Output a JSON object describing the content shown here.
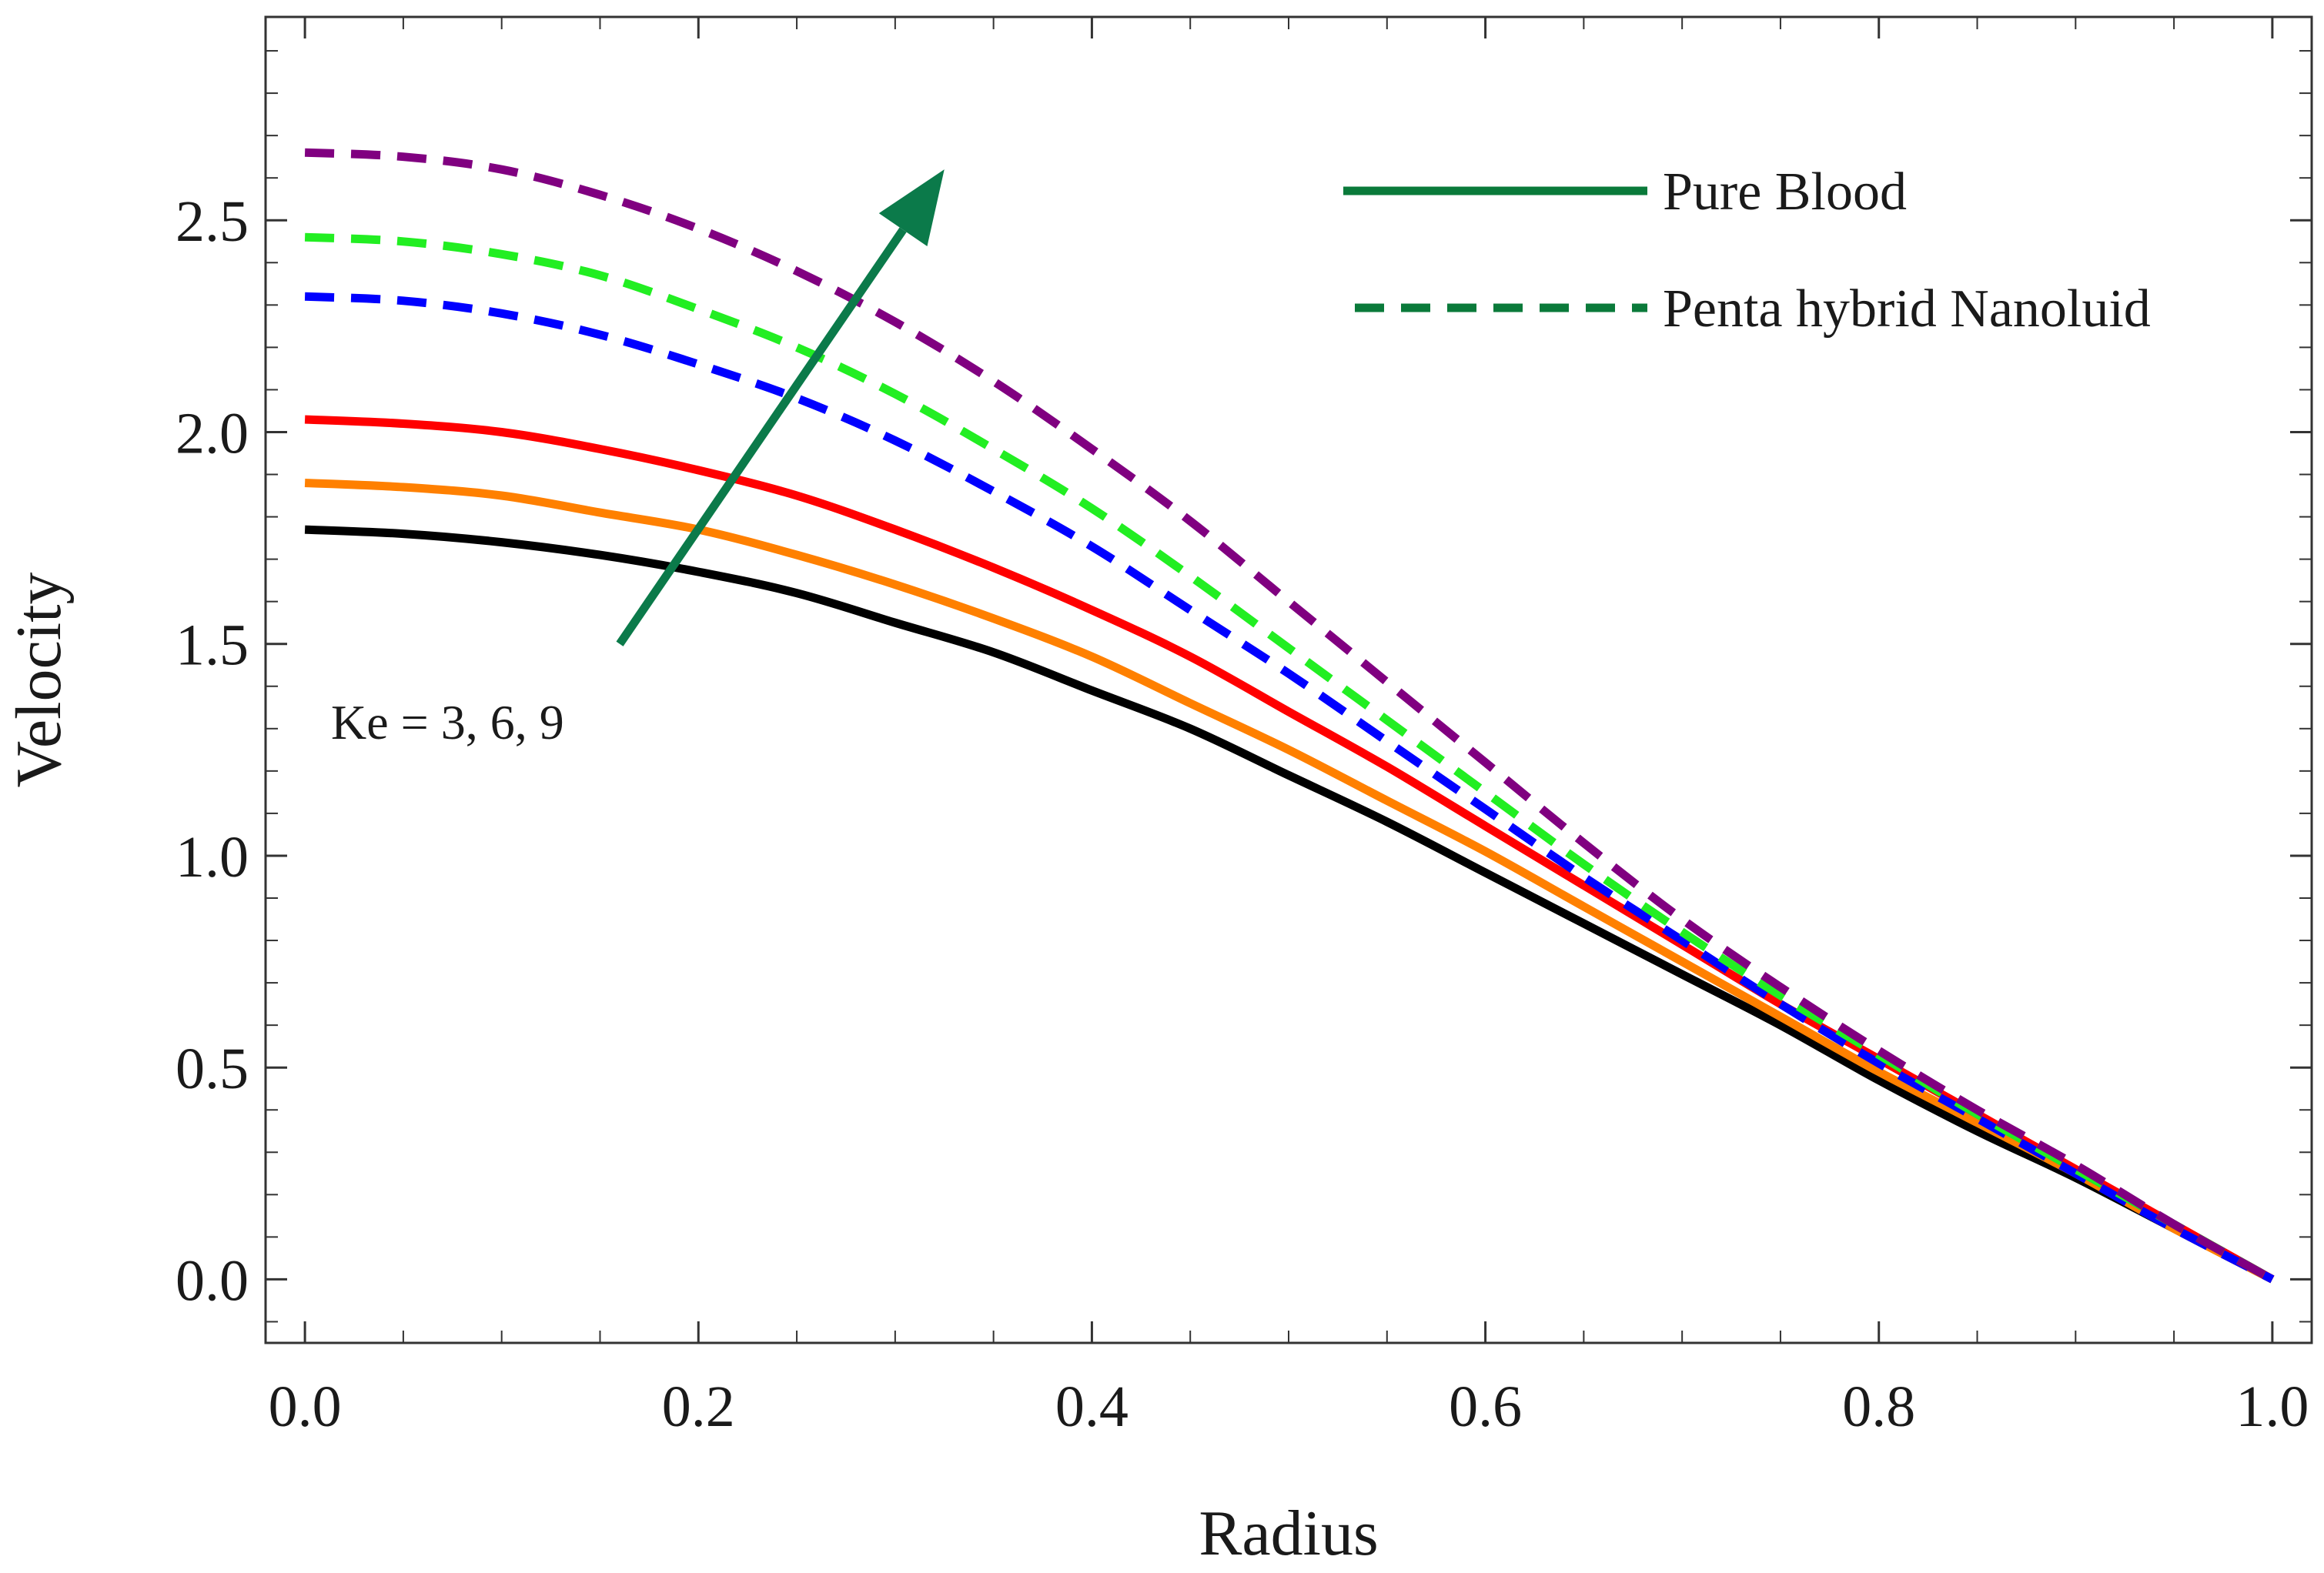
{
  "chart_data": {
    "type": "line",
    "title": "",
    "xlabel": "Radius",
    "ylabel": "Velocity",
    "xlim": [
      -0.02,
      1.02
    ],
    "ylim": [
      -0.15,
      2.98
    ],
    "xticks": [
      "0.0",
      "0.2",
      "0.4",
      "0.6",
      "0.8",
      "1.0"
    ],
    "xtick_values": [
      0,
      0.2,
      0.4,
      0.6,
      0.8,
      1.0
    ],
    "yticks": [
      "0.0",
      "0.5",
      "1.0",
      "1.5",
      "2.0",
      "2.5"
    ],
    "ytick_values": [
      0,
      0.5,
      1.0,
      1.5,
      2.0,
      2.5
    ],
    "grid": false,
    "legend_position": "top-right",
    "legend": [
      {
        "label": "Pure Blood",
        "style": "solid",
        "color": "#0a7a3a"
      },
      {
        "label": "Penta hybrid Nanoluid",
        "style": "dashed",
        "color": "#0a7a3a"
      }
    ],
    "annotation": {
      "text": "Ke = 3, 6, 9",
      "arrow": "increasing Ke",
      "arrow_from": [
        0.16,
        1.5
      ],
      "arrow_to": [
        0.325,
        2.62
      ],
      "arrow_color": "#0b7a4a"
    },
    "x": [
      0.0,
      0.05,
      0.1,
      0.15,
      0.2,
      0.25,
      0.3,
      0.35,
      0.4,
      0.45,
      0.5,
      0.55,
      0.6,
      0.65,
      0.7,
      0.75,
      0.8,
      0.85,
      0.9,
      0.95,
      1.0
    ],
    "series": [
      {
        "name": "Pure Blood, Ke = 3",
        "style": "solid",
        "color": "#000000",
        "values": [
          1.77,
          1.76,
          1.74,
          1.71,
          1.67,
          1.62,
          1.55,
          1.48,
          1.39,
          1.3,
          1.19,
          1.08,
          0.96,
          0.84,
          0.72,
          0.6,
          0.47,
          0.35,
          0.24,
          0.12,
          0.0
        ]
      },
      {
        "name": "Pure Blood, Ke = 6",
        "style": "solid",
        "color": "#ff8000",
        "values": [
          1.88,
          1.87,
          1.85,
          1.81,
          1.77,
          1.71,
          1.64,
          1.56,
          1.47,
          1.36,
          1.25,
          1.13,
          1.01,
          0.88,
          0.75,
          0.62,
          0.49,
          0.37,
          0.25,
          0.12,
          0.0
        ]
      },
      {
        "name": "Pure Blood, Ke = 9",
        "style": "solid",
        "color": "#ff0000",
        "values": [
          2.03,
          2.02,
          2.0,
          1.96,
          1.91,
          1.85,
          1.77,
          1.68,
          1.58,
          1.47,
          1.34,
          1.21,
          1.07,
          0.93,
          0.79,
          0.65,
          0.52,
          0.39,
          0.26,
          0.13,
          0.0
        ]
      },
      {
        "name": "Penta hybrid Nanoluid, Ke = 3",
        "style": "dashed",
        "color": "#0000ff",
        "values": [
          2.32,
          2.31,
          2.28,
          2.23,
          2.16,
          2.08,
          1.98,
          1.86,
          1.73,
          1.58,
          1.43,
          1.27,
          1.11,
          0.95,
          0.8,
          0.65,
          0.51,
          0.38,
          0.25,
          0.12,
          0.0
        ]
      },
      {
        "name": "Penta hybrid Nanoluid, Ke = 6",
        "style": "dashed",
        "color": "#22ee22",
        "values": [
          2.46,
          2.45,
          2.42,
          2.37,
          2.29,
          2.2,
          2.09,
          1.96,
          1.82,
          1.66,
          1.49,
          1.32,
          1.15,
          0.98,
          0.82,
          0.67,
          0.53,
          0.39,
          0.26,
          0.13,
          0.0
        ]
      },
      {
        "name": "Penta hybrid Nanoluid, Ke = 9",
        "style": "dashed",
        "color": "#800080",
        "values": [
          2.66,
          2.65,
          2.62,
          2.56,
          2.48,
          2.38,
          2.26,
          2.12,
          1.96,
          1.79,
          1.6,
          1.41,
          1.22,
          1.03,
          0.85,
          0.69,
          0.54,
          0.4,
          0.27,
          0.13,
          0.0
        ]
      }
    ]
  }
}
